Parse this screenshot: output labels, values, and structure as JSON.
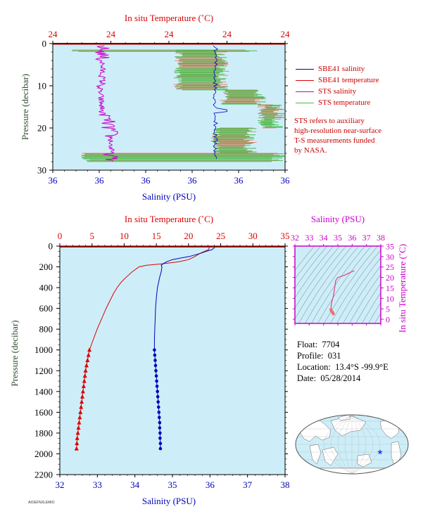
{
  "info": {
    "float_label": "Float:",
    "float": "7704",
    "profile_label": "Profile:",
    "profile": "031",
    "location_label": "Location:",
    "location": "13.4°S  -99.9°E",
    "date_label": "Date:",
    "date": "05/28/2014"
  },
  "legend": {
    "items": [
      {
        "label": "SBE41 salinity",
        "color": "#0000bb"
      },
      {
        "label": "SBE41 temperature",
        "color": "#dd0000"
      },
      {
        "label": "STS salinity",
        "color": "#cc00cc"
      },
      {
        "label": "STS temperature",
        "color": "#44bb44"
      }
    ],
    "note": [
      "STS refers to auxiliary",
      "high-resolution near-surface",
      "T-S measurements funded",
      "by NASA."
    ]
  },
  "footer_tag": "AIOEFNXLEMIO",
  "colors": {
    "plot_bg": "#cdeef8",
    "temperature": "#dd0000",
    "salinity": "#0000bb",
    "sts_salinity": "#cc00cc",
    "sts_temperature": "#44bb44",
    "sts_temperature_light": "#f08080",
    "pressure_axis": "#2e4d2e",
    "ts_axis": "#cc00cc"
  },
  "chart_data": [
    {
      "type": "line",
      "name": "near-surface",
      "title_top": "In situ Temperature (˚C)",
      "xlabel": "Salinity (PSU)",
      "ylabel": "Pressure (decibar)",
      "top_tick_labels": [
        "24",
        "24",
        "24",
        "24",
        "24"
      ],
      "bottom_tick_labels": [
        "36",
        "36",
        "36",
        "36",
        "36",
        "36"
      ],
      "ylim": [
        0,
        30
      ],
      "yticks": [
        0,
        10,
        20,
        30
      ],
      "grid": false,
      "legend": "right"
    },
    {
      "type": "line",
      "name": "full-profile",
      "title_top": "In situ Temperature (˚C)",
      "xlabel": "Salinity (PSU)",
      "ylabel": "Pressure (decibar)",
      "temperature_range": [
        0,
        35
      ],
      "temperature_ticks": [
        0,
        5,
        10,
        15,
        20,
        25,
        30,
        35
      ],
      "salinity_range": [
        32,
        38
      ],
      "salinity_ticks": [
        32,
        33,
        34,
        35,
        36,
        37,
        38
      ],
      "ylim": [
        0,
        2200
      ],
      "yticks": [
        0,
        200,
        400,
        600,
        800,
        1000,
        1200,
        1400,
        1600,
        1800,
        2000,
        2200
      ],
      "series": [
        {
          "name": "SBE41 temperature",
          "pressure": [
            5,
            20,
            35,
            50,
            70,
            100,
            130,
            150,
            170,
            185,
            200,
            250,
            300,
            350,
            400,
            450,
            500,
            600,
            700,
            800,
            900,
            1000
          ],
          "values": [
            23.2,
            23.2,
            23.1,
            22.5,
            21.8,
            21.0,
            20.0,
            18.5,
            16.0,
            13.5,
            12.3,
            11.2,
            10.3,
            9.5,
            8.9,
            8.4,
            8.0,
            7.2,
            6.5,
            5.8,
            5.2,
            4.6
          ],
          "points_pressure": [
            1000,
            1050,
            1100,
            1150,
            1200,
            1250,
            1300,
            1350,
            1400,
            1450,
            1500,
            1550,
            1600,
            1650,
            1700,
            1750,
            1800,
            1850,
            1900,
            1950
          ],
          "points_values": [
            4.6,
            4.45,
            4.3,
            4.15,
            4.0,
            3.9,
            3.8,
            3.7,
            3.6,
            3.5,
            3.4,
            3.3,
            3.2,
            3.1,
            3.0,
            2.9,
            2.8,
            2.7,
            2.65,
            2.6
          ]
        },
        {
          "name": "SBE41 salinity",
          "pressure": [
            5,
            20,
            35,
            50,
            70,
            100,
            130,
            150,
            170,
            185,
            200,
            250,
            300,
            400,
            500,
            600,
            700,
            800,
            900,
            1000
          ],
          "values": [
            36.15,
            36.1,
            36.05,
            35.9,
            35.75,
            35.45,
            35.0,
            34.85,
            34.75,
            34.7,
            34.72,
            34.7,
            34.66,
            34.6,
            34.57,
            34.55,
            34.54,
            34.53,
            34.52,
            34.52
          ],
          "points_pressure": [
            1000,
            1050,
            1100,
            1150,
            1200,
            1250,
            1300,
            1350,
            1400,
            1450,
            1500,
            1550,
            1600,
            1650,
            1700,
            1750,
            1800,
            1850,
            1900,
            1950
          ],
          "points_values": [
            34.52,
            34.53,
            34.54,
            34.55,
            34.56,
            34.57,
            34.58,
            34.59,
            34.6,
            34.61,
            34.62,
            34.63,
            34.64,
            34.65,
            34.66,
            34.66,
            34.67,
            34.67,
            34.68,
            34.68
          ]
        }
      ],
      "grid": false
    },
    {
      "type": "scatter",
      "name": "ts-diagram",
      "title_top": "Salinity (PSU)",
      "ylabel": "In situ Temperature (˚C)",
      "xlim": [
        32,
        38
      ],
      "xticks": [
        32,
        33,
        34,
        35,
        36,
        37,
        38
      ],
      "ylim": [
        -2,
        35
      ],
      "yticks": [
        0,
        5,
        10,
        15,
        20,
        25,
        30,
        35
      ],
      "series": [
        {
          "name": "profile",
          "salinity": [
            36.15,
            36.1,
            35.9,
            35.45,
            35.0,
            34.85,
            34.72,
            34.66,
            34.6,
            34.55,
            34.52,
            34.55,
            34.6,
            34.64,
            34.68
          ],
          "temperature": [
            23.2,
            23.1,
            22.5,
            21.0,
            20.0,
            18.5,
            12.3,
            10.3,
            8.9,
            7.2,
            4.6,
            4.0,
            3.6,
            3.2,
            2.6
          ]
        }
      ],
      "grid": false
    }
  ]
}
